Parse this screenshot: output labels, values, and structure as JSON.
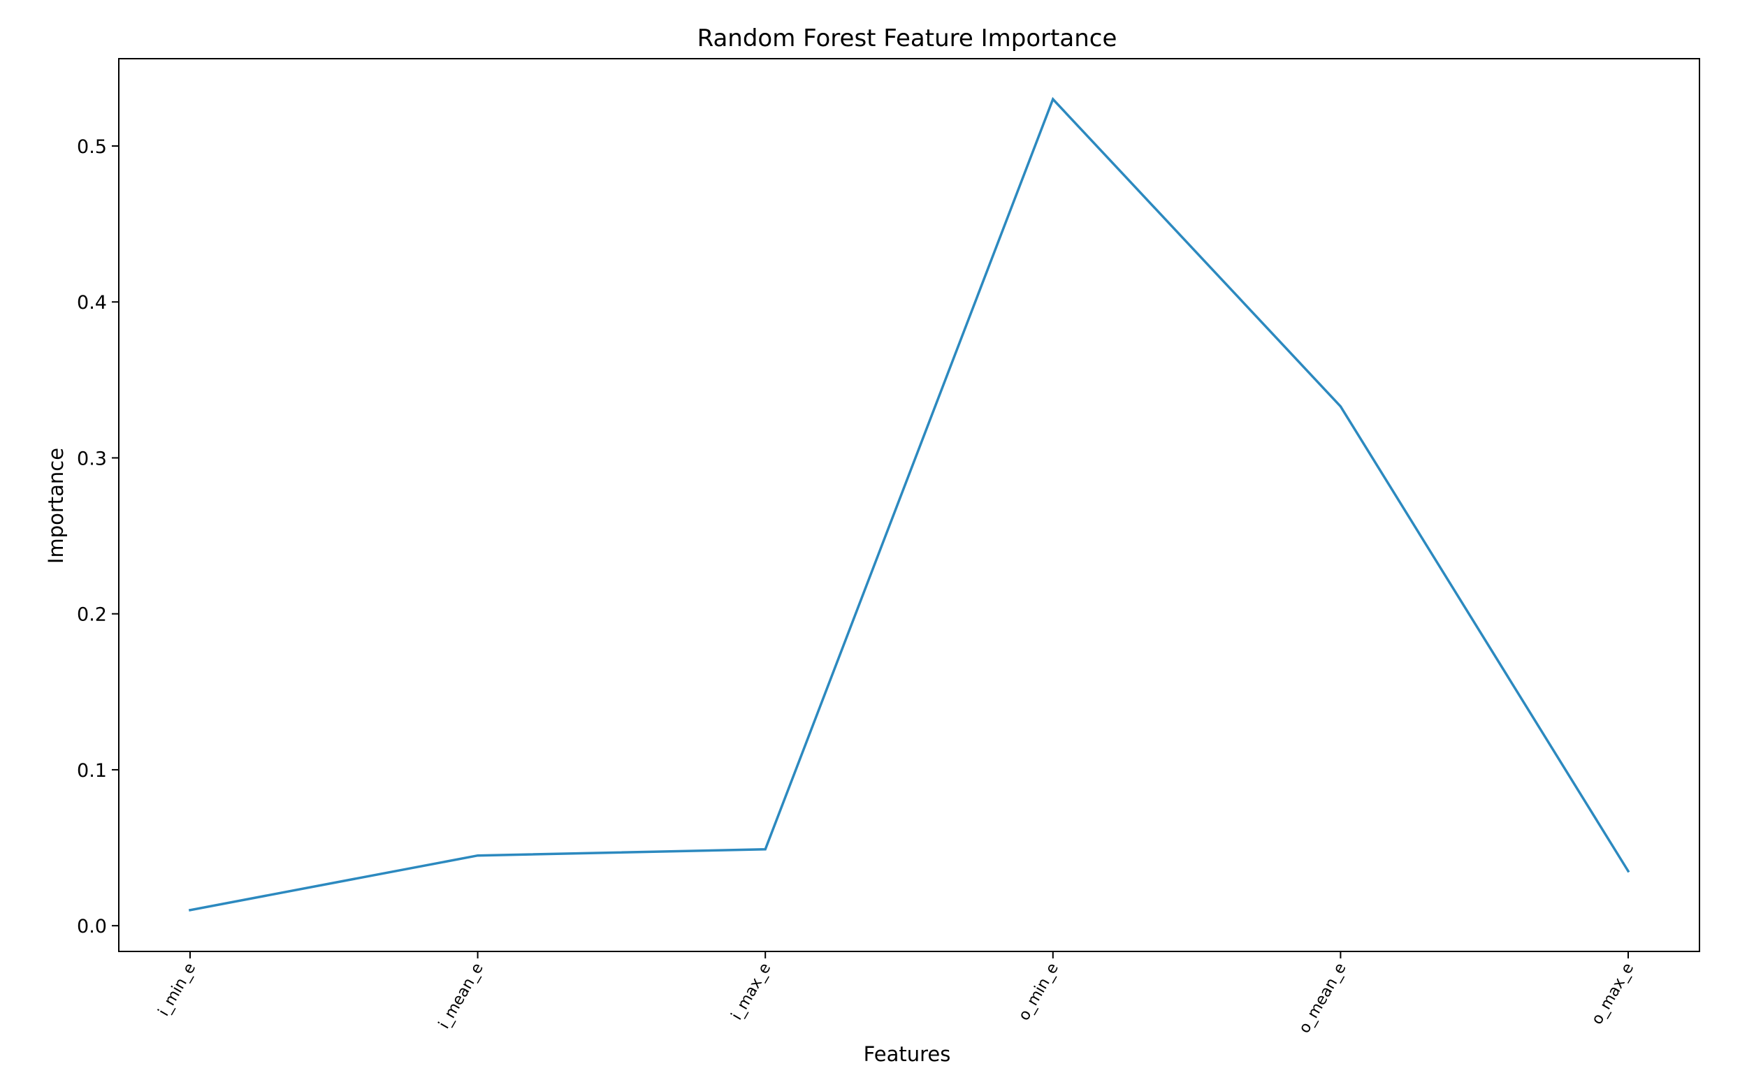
{
  "chart_data": {
    "type": "line",
    "title": "Random Forest Feature Importance",
    "xlabel": "Features",
    "ylabel": "Importance",
    "categories": [
      "i_min_e",
      "i_mean_e",
      "i_max_e",
      "o_min_e",
      "o_mean_e",
      "o_max_e"
    ],
    "values": [
      0.01,
      0.045,
      0.049,
      0.53,
      0.333,
      0.035
    ],
    "ylim": [
      -0.0165,
      0.556
    ],
    "yticks": [
      0.0,
      0.1,
      0.2,
      0.3,
      0.4,
      0.5
    ],
    "ytick_labels": [
      "0.0",
      "0.1",
      "0.2",
      "0.3",
      "0.4",
      "0.5"
    ],
    "grid": false,
    "line_color": "#2c89bf"
  }
}
